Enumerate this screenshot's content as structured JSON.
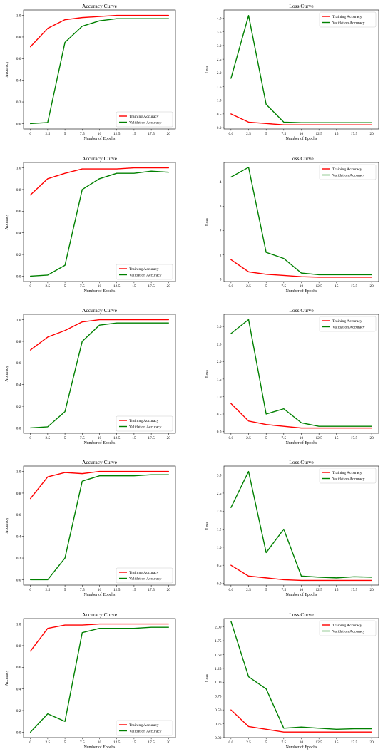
{
  "figure": {
    "chart_data": [
      {
        "type": "line",
        "title": "Accuracy Curve",
        "xlabel": "Number of Epochs",
        "ylabel": "Accuracy",
        "x": [
          0,
          2.5,
          5,
          7.5,
          10,
          12.5,
          15,
          17.5,
          20
        ],
        "xticks": [
          "0",
          "2.5",
          "5",
          "7.5",
          "10",
          "12.5",
          "15",
          "17.5",
          "20"
        ],
        "xlim": [
          -1,
          21
        ],
        "ylim": [
          -0.05,
          1.05
        ],
        "yticks": [
          "0.0",
          "0.2",
          "0.4",
          "0.6",
          "0.8",
          "1.0"
        ],
        "legend_position": "lower-right",
        "series": [
          {
            "name": "Training Accuracy",
            "color": "#ff0000",
            "values": [
              0.71,
              0.88,
              0.96,
              0.98,
              0.99,
              1.0,
              1.0,
              1.0,
              1.0
            ]
          },
          {
            "name": "Validation Accuracy",
            "color": "#008000",
            "values": [
              0.0,
              0.01,
              0.75,
              0.9,
              0.95,
              0.97,
              0.97,
              0.97,
              0.97
            ]
          }
        ]
      },
      {
        "type": "line",
        "title": "Loss Curve",
        "xlabel": "Number of Epochs",
        "ylabel": "Loss",
        "x": [
          0,
          2.5,
          5,
          7.5,
          10,
          12.5,
          15,
          17.5,
          20
        ],
        "xticks": [
          "0.0",
          "2.5",
          "5",
          "7.5",
          "10",
          "12.5",
          "15",
          "17.5",
          "20"
        ],
        "xlim": [
          -1,
          21
        ],
        "ylim": [
          -0.05,
          4.3
        ],
        "yticks": [
          "0.0",
          "0.5",
          "1.0",
          "1.5",
          "2.0",
          "2.5",
          "3.0",
          "3.5",
          "4.0"
        ],
        "legend_position": "upper-right",
        "series": [
          {
            "name": "Training Accuracy",
            "color": "#ff0000",
            "values": [
              0.5,
              0.2,
              0.15,
              0.1,
              0.1,
              0.1,
              0.1,
              0.1,
              0.1
            ]
          },
          {
            "name": "Validation Accuracy",
            "color": "#008000",
            "values": [
              1.8,
              4.1,
              0.85,
              0.2,
              0.18,
              0.18,
              0.18,
              0.18,
              0.18
            ]
          }
        ]
      },
      {
        "type": "line",
        "title": "Accuracy Curve",
        "xlabel": "Number of Epochs",
        "ylabel": "Accuracy",
        "x": [
          0,
          2.5,
          5,
          7.5,
          10,
          12.5,
          15,
          17.5,
          20
        ],
        "xticks": [
          "0",
          "2.5",
          "5",
          "7.5",
          "10",
          "12.5",
          "15",
          "17.5",
          "20"
        ],
        "xlim": [
          -1,
          21
        ],
        "ylim": [
          -0.05,
          1.05
        ],
        "yticks": [
          "0.0",
          "0.2",
          "0.4",
          "0.6",
          "0.8",
          "1.0"
        ],
        "legend_position": "lower-right",
        "series": [
          {
            "name": "Training Accuracy",
            "color": "#ff0000",
            "values": [
              0.75,
              0.9,
              0.95,
              0.99,
              0.99,
              0.99,
              1.0,
              1.0,
              1.0
            ]
          },
          {
            "name": "Validation Accuracy",
            "color": "#008000",
            "values": [
              0.0,
              0.01,
              0.1,
              0.8,
              0.9,
              0.95,
              0.95,
              0.97,
              0.96
            ]
          }
        ]
      },
      {
        "type": "line",
        "title": "Loss Curve",
        "xlabel": "Number of Epochs",
        "ylabel": "Loss",
        "x": [
          0,
          2.5,
          5,
          7.5,
          10,
          12.5,
          15,
          17.5,
          20
        ],
        "xticks": [
          "0.0",
          "2.5",
          "5",
          "7.5",
          "10",
          "12.5",
          "15",
          "17.5",
          "20"
        ],
        "xlim": [
          -1,
          21
        ],
        "ylim": [
          -0.1,
          4.8
        ],
        "yticks": [
          "0",
          "1",
          "2",
          "3",
          "4"
        ],
        "legend_position": "upper-right",
        "series": [
          {
            "name": "Training Accuracy",
            "color": "#ff0000",
            "values": [
              0.8,
              0.3,
              0.2,
              0.15,
              0.1,
              0.08,
              0.08,
              0.08,
              0.08
            ]
          },
          {
            "name": "Validation Accuracy",
            "color": "#008000",
            "values": [
              4.2,
              4.6,
              1.1,
              0.85,
              0.25,
              0.18,
              0.18,
              0.18,
              0.18
            ]
          }
        ]
      },
      {
        "type": "line",
        "title": "Accuracy Curve",
        "xlabel": "Number of Epochs",
        "ylabel": "Accuracy",
        "x": [
          0,
          2.5,
          5,
          7.5,
          10,
          12.5,
          15,
          17.5,
          20
        ],
        "xticks": [
          "0",
          "2.5",
          "5",
          "7.5",
          "10",
          "12.5",
          "15",
          "17.5",
          "20"
        ],
        "xlim": [
          -1,
          21
        ],
        "ylim": [
          -0.05,
          1.05
        ],
        "yticks": [
          "0.0",
          "0.2",
          "0.4",
          "0.6",
          "0.8",
          "1.0"
        ],
        "legend_position": "lower-right",
        "series": [
          {
            "name": "Training Accuracy",
            "color": "#ff0000",
            "values": [
              0.72,
              0.84,
              0.9,
              0.98,
              1.0,
              1.0,
              1.0,
              1.0,
              1.0
            ]
          },
          {
            "name": "Validation Accuracy",
            "color": "#008000",
            "values": [
              0.0,
              0.01,
              0.15,
              0.8,
              0.95,
              0.97,
              0.97,
              0.97,
              0.97
            ]
          }
        ]
      },
      {
        "type": "line",
        "title": "Loss Curve",
        "xlabel": "Number of Epochs",
        "ylabel": "Loss",
        "x": [
          0,
          2.5,
          5,
          7.5,
          10,
          12.5,
          15,
          17.5,
          20
        ],
        "xticks": [
          "0.0",
          "2.5",
          "5",
          "7.5",
          "10",
          "12.5",
          "15",
          "17.5",
          "20"
        ],
        "xlim": [
          -1,
          21
        ],
        "ylim": [
          -0.05,
          3.35
        ],
        "yticks": [
          "0.0",
          "0.5",
          "1.0",
          "1.5",
          "2.0",
          "2.5",
          "3.0"
        ],
        "legend_position": "upper-right",
        "series": [
          {
            "name": "Training Accuracy",
            "color": "#ff0000",
            "values": [
              0.8,
              0.3,
              0.2,
              0.15,
              0.1,
              0.1,
              0.1,
              0.1,
              0.1
            ]
          },
          {
            "name": "Validation Accuracy",
            "color": "#008000",
            "values": [
              2.8,
              3.2,
              0.5,
              0.65,
              0.25,
              0.15,
              0.15,
              0.15,
              0.15
            ]
          }
        ]
      },
      {
        "type": "line",
        "title": "Accuracy Curve",
        "xlabel": "Number of Epochs",
        "ylabel": "Accuracy",
        "x": [
          0,
          2.5,
          5,
          7.5,
          10,
          12.5,
          15,
          17.5,
          20
        ],
        "xticks": [
          "0",
          "2.5",
          "5",
          "7.5",
          "10",
          "12.5",
          "15",
          "17.5",
          "20"
        ],
        "xlim": [
          -1,
          21
        ],
        "ylim": [
          -0.05,
          1.05
        ],
        "yticks": [
          "0.0",
          "0.2",
          "0.4",
          "0.6",
          "0.8",
          "1.0"
        ],
        "legend_position": "lower-right",
        "series": [
          {
            "name": "Training Accuracy",
            "color": "#ff0000",
            "values": [
              0.75,
              0.95,
              0.99,
              0.98,
              1.0,
              1.0,
              1.0,
              1.0,
              1.0
            ]
          },
          {
            "name": "Validation Accuracy",
            "color": "#008000",
            "values": [
              0.0,
              0.0,
              0.2,
              0.91,
              0.96,
              0.96,
              0.96,
              0.97,
              0.97
            ]
          }
        ]
      },
      {
        "type": "line",
        "title": "Loss Curve",
        "xlabel": "Number of Epochs",
        "ylabel": "Loss",
        "x": [
          0,
          2.5,
          5,
          7.5,
          10,
          12.5,
          15,
          17.5,
          20
        ],
        "xticks": [
          "0.0",
          "2.5",
          "5",
          "7.5",
          "10",
          "12.5",
          "15",
          "17.5",
          "20"
        ],
        "xlim": [
          -1,
          21
        ],
        "ylim": [
          -0.05,
          3.25
        ],
        "yticks": [
          "0.0",
          "0.5",
          "1.0",
          "1.5",
          "2.0",
          "2.5",
          "3.0"
        ],
        "legend_position": "upper-right",
        "series": [
          {
            "name": "Training Accuracy",
            "color": "#ff0000",
            "values": [
              0.5,
              0.2,
              0.15,
              0.1,
              0.08,
              0.08,
              0.08,
              0.08,
              0.08
            ]
          },
          {
            "name": "Validation Accuracy",
            "color": "#008000",
            "values": [
              2.1,
              3.1,
              0.85,
              1.5,
              0.2,
              0.17,
              0.15,
              0.18,
              0.17
            ]
          }
        ]
      },
      {
        "type": "line",
        "title": "Accuracy Curve",
        "xlabel": "Number of Epochs",
        "ylabel": "Accuracy",
        "x": [
          0,
          2.5,
          5,
          7.5,
          10,
          12.5,
          15,
          17.5,
          20
        ],
        "xticks": [
          "0",
          "2.5",
          "5",
          "7.5",
          "10",
          "12.5",
          "15",
          "17.5",
          "20"
        ],
        "xlim": [
          -1,
          21
        ],
        "ylim": [
          -0.05,
          1.05
        ],
        "yticks": [
          "0.0",
          "0.2",
          "0.4",
          "0.6",
          "0.8",
          "1.0"
        ],
        "legend_position": "lower-right",
        "series": [
          {
            "name": "Training Accuracy",
            "color": "#ff0000",
            "values": [
              0.75,
              0.96,
              0.99,
              0.99,
              1.0,
              1.0,
              1.0,
              1.0,
              1.0
            ]
          },
          {
            "name": "Validation Accuracy",
            "color": "#008000",
            "values": [
              0.0,
              0.17,
              0.1,
              0.92,
              0.96,
              0.96,
              0.96,
              0.97,
              0.97
            ]
          }
        ]
      },
      {
        "type": "line",
        "title": "Loss Curve",
        "xlabel": "Number of Epochs",
        "ylabel": "Loss",
        "x": [
          0,
          2.5,
          5,
          7.5,
          10,
          12.5,
          15,
          17.5,
          20
        ],
        "xticks": [
          "0.0",
          "2.5",
          "5",
          "7.5",
          "10",
          "12.5",
          "15",
          "17.5",
          "20"
        ],
        "xlim": [
          -1,
          21
        ],
        "ylim": [
          0,
          2.15
        ],
        "yticks": [
          "0.00",
          "0.25",
          "0.50",
          "0.75",
          "1.00",
          "1.25",
          "1.50",
          "1.75",
          "2.00"
        ],
        "legend_position": "upper-right",
        "series": [
          {
            "name": "Training Accuracy",
            "color": "#ff0000",
            "values": [
              0.5,
              0.2,
              0.15,
              0.1,
              0.1,
              0.1,
              0.1,
              0.1,
              0.1
            ]
          },
          {
            "name": "Validation Accuracy",
            "color": "#008000",
            "values": [
              2.1,
              1.1,
              0.88,
              0.17,
              0.19,
              0.17,
              0.15,
              0.16,
              0.16
            ]
          }
        ]
      }
    ]
  }
}
